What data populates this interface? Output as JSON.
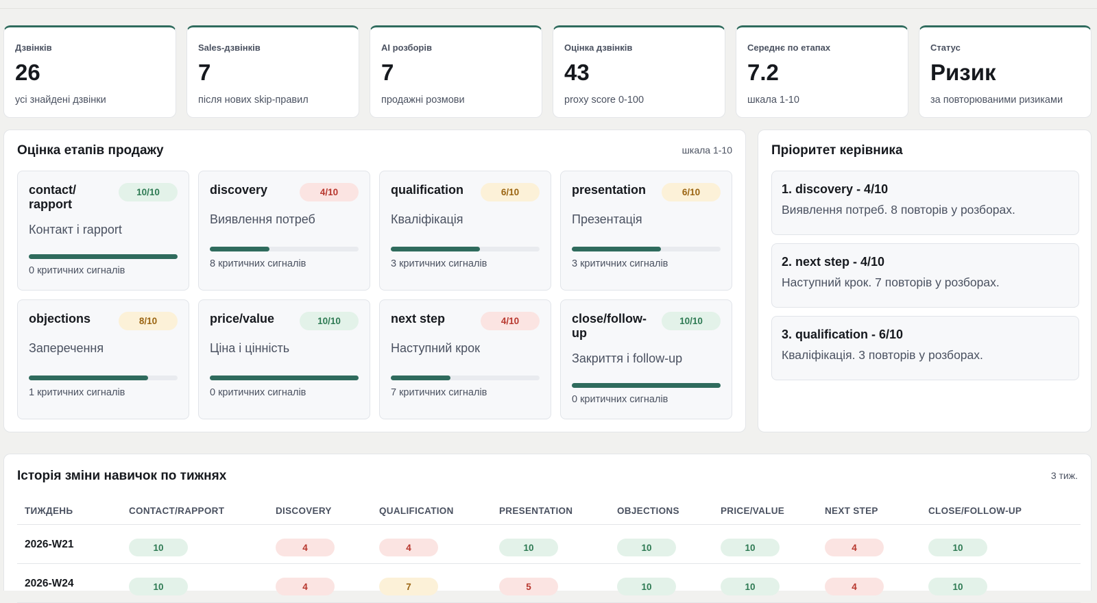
{
  "kpis": [
    {
      "label": "Дзвінків",
      "value": "26",
      "sub": "усі знайдені дзвінки"
    },
    {
      "label": "Sales-дзвінків",
      "value": "7",
      "sub": "після нових skip-правил"
    },
    {
      "label": "AI розборів",
      "value": "7",
      "sub": "продажні розмови"
    },
    {
      "label": "Оцінка дзвінків",
      "value": "43",
      "sub": "proxy score 0-100"
    },
    {
      "label": "Середнє по етапах",
      "value": "7.2",
      "sub": "шкала 1-10"
    },
    {
      "label": "Статус",
      "value": "Ризик",
      "sub": "за повторюваними ризиками"
    }
  ],
  "stages_panel": {
    "title": "Оцінка етапів продажу",
    "note": "шкала 1-10",
    "stages": [
      {
        "name": "contact/ rapport",
        "score_label": "10/10",
        "score": 10,
        "tone": "green",
        "desc": "Контакт і rapport",
        "signals": "0 критичних сигналів"
      },
      {
        "name": "discovery",
        "score_label": "4/10",
        "score": 4,
        "tone": "red",
        "desc": "Виявлення потреб",
        "signals": "8 критичних сигналів"
      },
      {
        "name": "qualification",
        "score_label": "6/10",
        "score": 6,
        "tone": "amber",
        "desc": "Кваліфікація",
        "signals": "3 критичних сигналів"
      },
      {
        "name": "presentation",
        "score_label": "6/10",
        "score": 6,
        "tone": "amber",
        "desc": "Презентація",
        "signals": "3 критичних сигналів"
      },
      {
        "name": "objections",
        "score_label": "8/10",
        "score": 8,
        "tone": "amber",
        "desc": "Заперечення",
        "signals": "1 критичних сигналів"
      },
      {
        "name": "price/value",
        "score_label": "10/10",
        "score": 10,
        "tone": "green",
        "desc": "Ціна і цінність",
        "signals": "0 критичних сигналів"
      },
      {
        "name": "next step",
        "score_label": "4/10",
        "score": 4,
        "tone": "red",
        "desc": "Наступний крок",
        "signals": "7 критичних сигналів"
      },
      {
        "name": "close/follow- up",
        "score_label": "10/10",
        "score": 10,
        "tone": "green",
        "desc": "Закриття і follow-up",
        "signals": "0 критичних сигналів"
      }
    ]
  },
  "priority_panel": {
    "title": "Пріоритет керівника",
    "items": [
      {
        "title": "1. discovery - 4/10",
        "desc": "Виявлення потреб. 8 повторів у розборах."
      },
      {
        "title": "2. next step - 4/10",
        "desc": "Наступний крок. 7 повторів у розборах."
      },
      {
        "title": "3. qualification - 6/10",
        "desc": "Кваліфікація. 3 повторів у розборах."
      }
    ]
  },
  "history_panel": {
    "title": "Історія зміни навичок по тижнях",
    "note": "3 тиж.",
    "columns": [
      "ТИЖДЕНЬ",
      "CONTACT/RAPPORT",
      "DISCOVERY",
      "QUALIFICATION",
      "PRESENTATION",
      "OBJECTIONS",
      "PRICE/VALUE",
      "NEXT STEP",
      "CLOSE/FOLLOW-UP"
    ],
    "rows": [
      {
        "week": "2026-W21",
        "values": [
          "10",
          "4",
          "4",
          "10",
          "10",
          "10",
          "4",
          "10"
        ],
        "tones": [
          "green",
          "red",
          "red",
          "green",
          "green",
          "green",
          "red",
          "green"
        ]
      },
      {
        "week": "2026-W24",
        "values": [
          "10",
          "4",
          "7",
          "5",
          "10",
          "10",
          "4",
          "10"
        ],
        "tones": [
          "green",
          "red",
          "amber",
          "red",
          "green",
          "green",
          "red",
          "green"
        ]
      }
    ]
  },
  "colors": {
    "accent": "#2f6b5d",
    "green_bg": "#e3f2e9",
    "red_bg": "#fbe4e2",
    "amber_bg": "#fcf1d8"
  }
}
